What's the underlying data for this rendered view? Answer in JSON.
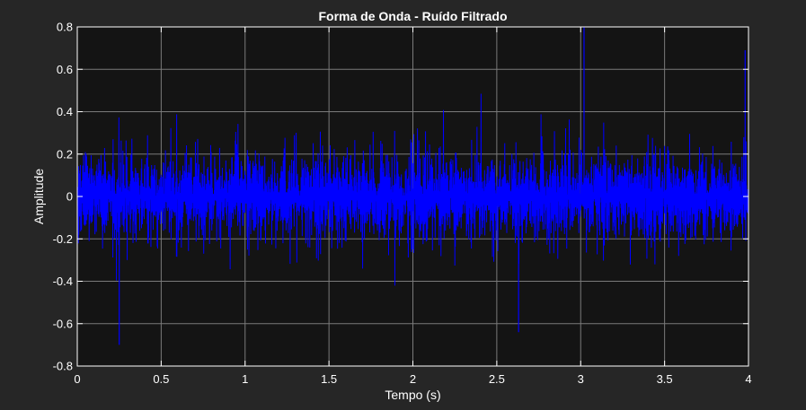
{
  "chart_data": {
    "type": "line",
    "title": "Forma de Onda - Ruído Filtrado",
    "xlabel": "Tempo (s)",
    "ylabel": "Amplitude",
    "xlim": [
      0,
      4
    ],
    "ylim": [
      -0.8,
      0.8
    ],
    "xticks": [
      0,
      0.5,
      1,
      1.5,
      2,
      2.5,
      3,
      3.5,
      4
    ],
    "xtick_labels": [
      "0",
      "0.5",
      "1",
      "1.5",
      "2",
      "2.5",
      "3",
      "3.5",
      "4"
    ],
    "yticks": [
      -0.8,
      -0.6,
      -0.4,
      -0.2,
      0,
      0.2,
      0.4,
      0.6,
      0.8
    ],
    "ytick_labels": [
      "-0.8",
      "-0.6",
      "-0.4",
      "-0.2",
      "0",
      "0.2",
      "0.4",
      "0.6",
      "0.8"
    ],
    "grid": true,
    "series": [
      {
        "color": "#0000ff",
        "duration": 4,
        "amplitude_envelope": {
          "typical_range": [
            -0.35,
            0.35
          ],
          "peak_max": 0.8,
          "peak_min": -0.7
        },
        "notable_peaks": [
          {
            "x": 0.25,
            "y": -0.7
          },
          {
            "x": 3.02,
            "y": 0.8
          },
          {
            "x": 3.98,
            "y": 0.69
          },
          {
            "x": 2.63,
            "y": -0.64
          }
        ]
      }
    ]
  },
  "colors": {
    "figure_background": "#262626",
    "axes_background": "#141414",
    "grid": "#7a7a7a",
    "axes_border": "#ffffff",
    "text": "#ffffff",
    "line": "#0000ff"
  }
}
